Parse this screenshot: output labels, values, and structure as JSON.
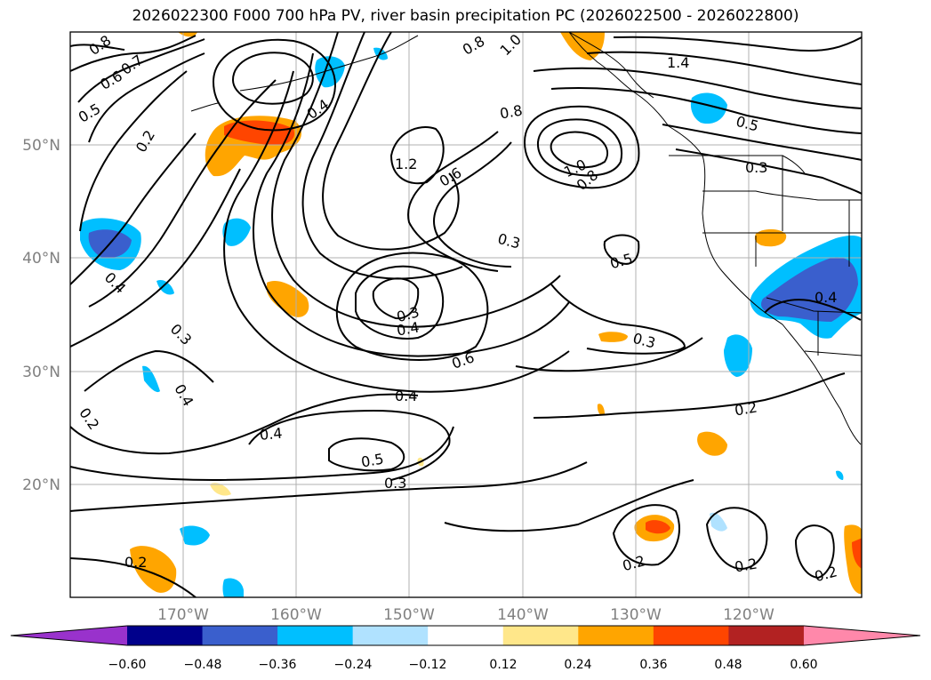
{
  "title": "2026022300 F000 700 hPa PV, river basin precipitation PC (2026022500 - 2026022800)",
  "lat_labels": [
    "50°N",
    "40°N",
    "30°N",
    "20°N"
  ],
  "lon_labels": [
    "170°W",
    "160°W",
    "150°W",
    "140°W",
    "130°W",
    "120°W"
  ],
  "colorbar": {
    "ticks": [
      "−0.60",
      "−0.48",
      "−0.36",
      "−0.24",
      "−0.12",
      "0.12",
      "0.24",
      "0.36",
      "0.48",
      "0.60"
    ],
    "colors": [
      "#9932cc",
      "#00008b",
      "#3a5fcd",
      "#00bfff",
      "#b0e2ff",
      "#ffffff",
      "#ffe78a",
      "#ffa500",
      "#ff4500",
      "#b22222",
      "#ff88aa"
    ]
  },
  "contour_labels": [
    "0.8",
    "0.7",
    "0.6",
    "0.5",
    "0.2",
    "0.4",
    "0.3",
    "0.4",
    "0.2",
    "0.4",
    "1.2",
    "0.8",
    "1.0",
    "0.8",
    "1.4",
    "0.5",
    "0.3",
    "0.6",
    "0.3",
    "0.5",
    "0.3",
    "0.4",
    "0.6",
    "0.3",
    "0.4",
    "0.4",
    "0.5",
    "0.3",
    "0.2",
    "0.4",
    "0.2",
    "0.2",
    "0.2",
    "0.2",
    "1.0",
    "0.8"
  ]
}
